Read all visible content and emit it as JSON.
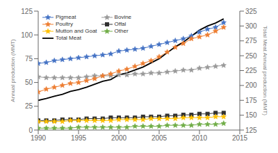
{
  "chart_data": {
    "type": "line",
    "x": [
      1990,
      1991,
      1992,
      1993,
      1994,
      1995,
      1996,
      1997,
      1998,
      1999,
      2000,
      2001,
      2002,
      2003,
      2004,
      2005,
      2006,
      2007,
      2008,
      2009,
      2010,
      2011,
      2012,
      2013
    ],
    "series": [
      {
        "name": "Pigmeat",
        "color": "#4472C4",
        "marker": "star",
        "values": [
          70,
          71,
          73,
          74,
          75,
          76,
          77,
          78,
          79,
          80,
          83,
          84,
          85,
          86,
          88,
          90,
          92,
          94,
          96,
          99,
          103,
          106,
          108,
          113
        ]
      },
      {
        "name": "Bovine",
        "color": "#999999",
        "marker": "star",
        "values": [
          56,
          55,
          55,
          55,
          55,
          55,
          56,
          57,
          57,
          57,
          58,
          58,
          59,
          59,
          60,
          60,
          61,
          62,
          63,
          63,
          65,
          66,
          67,
          68
        ]
      },
      {
        "name": "Poultry",
        "color": "#ED7D31",
        "marker": "star",
        "values": [
          40,
          43,
          45,
          47,
          49,
          50,
          52,
          54,
          57,
          59,
          62,
          64,
          67,
          70,
          73,
          77,
          82,
          87,
          91,
          96,
          98,
          100,
          104,
          108
        ]
      },
      {
        "name": "Offal",
        "color": "#303030",
        "marker": "square",
        "values": [
          10,
          10,
          10,
          11,
          11,
          11,
          12,
          12,
          12,
          13,
          13,
          13,
          13,
          14,
          14,
          14,
          15,
          15,
          16,
          16,
          17,
          17,
          18,
          18
        ]
      },
      {
        "name": "Mutton and Goat",
        "color": "#FFC000",
        "marker": "star",
        "values": [
          9,
          9,
          9,
          9,
          10,
          10,
          10,
          10,
          10,
          10,
          11,
          11,
          11,
          11,
          12,
          12,
          12,
          12,
          13,
          13,
          13,
          13,
          14,
          14
        ]
      },
      {
        "name": "Other",
        "color": "#70AD47",
        "marker": "star",
        "values": [
          2,
          2,
          2,
          2,
          2,
          3,
          3,
          3,
          3,
          3,
          3,
          3,
          4,
          4,
          4,
          4,
          5,
          5,
          5,
          5,
          6,
          6,
          6,
          7
        ]
      },
      {
        "name": "Total Meat",
        "color": "#000000",
        "marker": "none",
        "axis": "y2",
        "values": [
          175,
          178,
          182,
          185,
          190,
          193,
          197,
          202,
          207,
          210,
          218,
          221,
          226,
          231,
          238,
          245,
          255,
          265,
          273,
          283,
          293,
          300,
          305,
          312
        ]
      }
    ],
    "ylabel": "Annual production (MMT)",
    "y2label": "Total Meat Annual production (MMT)",
    "xlim": [
      1990,
      2015
    ],
    "xticks": [
      1990,
      1995,
      2000,
      2005,
      2010,
      2015
    ],
    "ylim": [
      0,
      125
    ],
    "yticks": [
      0,
      25,
      50,
      75,
      100,
      125
    ],
    "y2lim": [
      125,
      325
    ],
    "y2ticks": [
      125,
      150,
      175,
      200,
      225,
      250,
      275,
      300,
      325
    ],
    "grid": false,
    "legend": "upper left"
  }
}
